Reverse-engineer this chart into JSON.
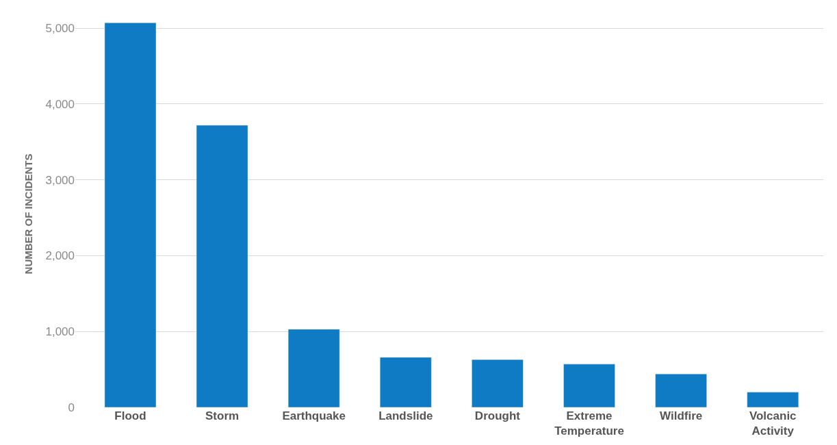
{
  "chart_data": {
    "type": "bar",
    "ylabel": "NUMBER OF INCIDENTS",
    "categories": [
      "Flood",
      "Storm",
      "Earthquake",
      "Landslide",
      "Drought",
      "Extreme Temperature",
      "Wildfire",
      "Volcanic Activity"
    ],
    "values": [
      5070,
      3720,
      1030,
      660,
      630,
      570,
      440,
      200
    ],
    "color": "#0f7bc4",
    "ylim": [
      0,
      5100
    ],
    "yticks": [
      {
        "value": 0,
        "label": "0"
      },
      {
        "value": 1000,
        "label": "1,000"
      },
      {
        "value": 2000,
        "label": "2,000"
      },
      {
        "value": 3000,
        "label": "3,000"
      },
      {
        "value": 4000,
        "label": "4,000"
      },
      {
        "value": 5000,
        "label": "5,000"
      }
    ],
    "grid": "y"
  }
}
